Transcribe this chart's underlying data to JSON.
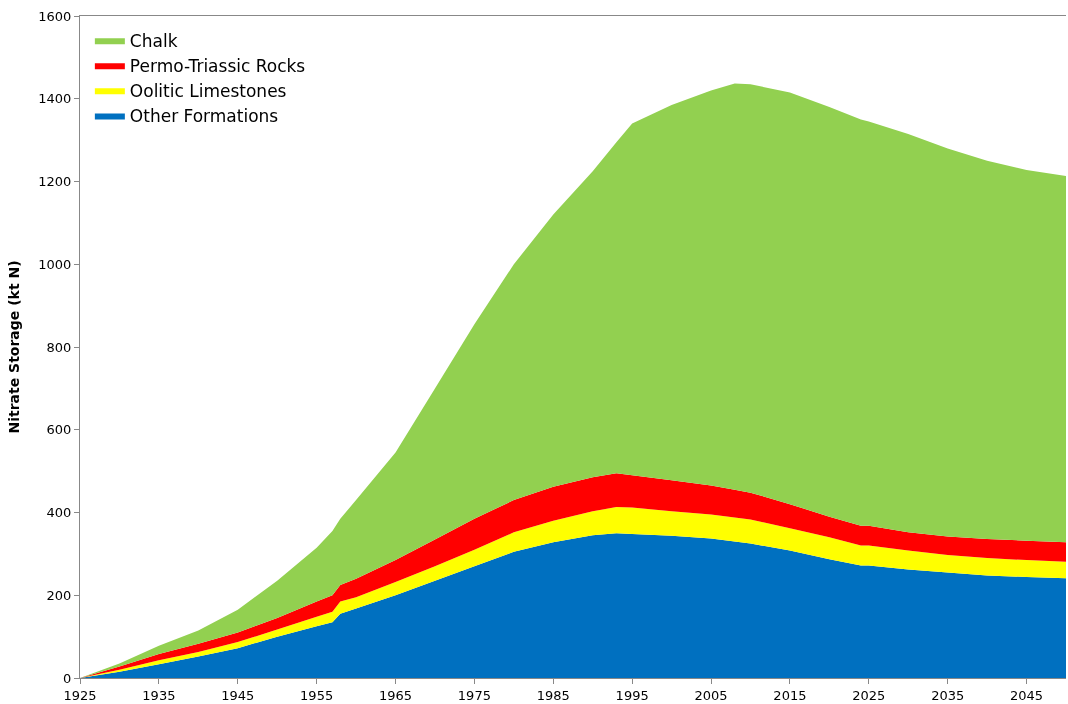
{
  "chart_data": {
    "type": "area",
    "stacked": true,
    "ylabel": "Nitrate Storage (kt N)",
    "x": [
      1925,
      1930,
      1935,
      1940,
      1945,
      1950,
      1955,
      1957,
      1958,
      1960,
      1965,
      1970,
      1975,
      1980,
      1985,
      1990,
      1993,
      1995,
      2000,
      2005,
      2008,
      2010,
      2015,
      2020,
      2024,
      2025,
      2030,
      2035,
      2040,
      2045,
      2050
    ],
    "series": [
      {
        "name": "Other Formations",
        "color": "#0070c0",
        "values": [
          0,
          15,
          33,
          52,
          72,
          100,
          125,
          135,
          155,
          168,
          200,
          235,
          270,
          305,
          328,
          345,
          350,
          348,
          344,
          337,
          330,
          325,
          308,
          287,
          272,
          272,
          262,
          255,
          248,
          244,
          241
        ]
      },
      {
        "name": "Oolitic Limestones",
        "color": "#ffff00",
        "values": [
          0,
          5,
          10,
          11,
          15,
          17,
          23,
          25,
          30,
          27,
          32,
          35,
          40,
          47,
          52,
          58,
          63,
          64,
          59,
          58,
          58,
          58,
          54,
          53,
          48,
          48,
          46,
          42,
          42,
          41,
          40
        ]
      },
      {
        "name": "Permo-Triassic Rocks",
        "color": "#ff0000",
        "values": [
          0,
          8,
          15,
          20,
          23,
          28,
          37,
          40,
          40,
          45,
          53,
          65,
          75,
          78,
          82,
          82,
          82,
          78,
          75,
          70,
          67,
          65,
          58,
          50,
          48,
          48,
          44,
          45,
          46,
          47,
          47
        ]
      },
      {
        "name": "Chalk",
        "color": "#92d050",
        "values": [
          0,
          7,
          20,
          32,
          55,
          90,
          130,
          155,
          160,
          190,
          260,
          365,
          470,
          570,
          658,
          740,
          800,
          850,
          907,
          955,
          982,
          987,
          995,
          990,
          982,
          977,
          963,
          938,
          914,
          896,
          885
        ]
      }
    ],
    "xlim": [
      1925,
      2050
    ],
    "xticks": [
      1925,
      1935,
      1945,
      1955,
      1965,
      1975,
      1985,
      1995,
      2005,
      2015,
      2025,
      2035,
      2045
    ],
    "ylim": [
      0,
      1600
    ],
    "yticks": [
      0,
      200,
      400,
      600,
      800,
      1000,
      1200,
      1400,
      1600
    ],
    "legend": "top left"
  }
}
